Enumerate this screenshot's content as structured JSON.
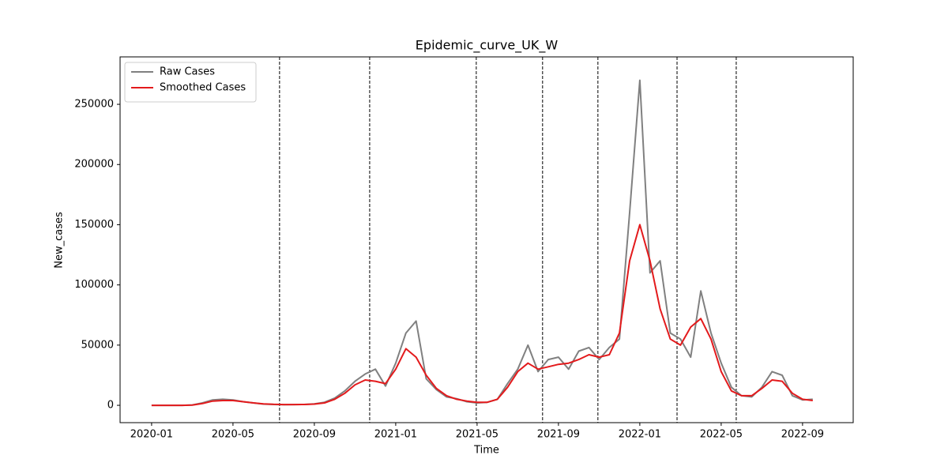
{
  "chart_data": {
    "type": "line",
    "title": "Epidemic_curve_UK_W",
    "xlabel": "Time",
    "ylabel": "New_cases",
    "x": [
      0,
      0.5,
      1,
      1.5,
      2,
      2.5,
      3,
      3.5,
      4,
      4.5,
      5,
      5.5,
      6,
      6.5,
      7,
      7.5,
      8,
      8.5,
      9,
      9.5,
      10,
      10.5,
      11,
      11.5,
      12,
      12.5,
      13,
      13.5,
      14,
      14.5,
      15,
      15.5,
      16,
      16.5,
      17,
      17.5,
      18,
      18.5,
      19,
      19.5,
      20,
      20.5,
      21,
      21.5,
      22,
      22.5,
      23,
      23.5,
      24,
      24.5,
      25,
      25.5,
      26,
      26.5,
      27,
      27.5,
      28,
      28.5,
      29,
      29.5,
      30,
      30.5,
      31,
      31.5,
      32,
      32.5
    ],
    "series": [
      {
        "name": "Raw Cases",
        "color": "#808080",
        "values": [
          0,
          0,
          0,
          0,
          300,
          2000,
          4500,
          5000,
          4500,
          3000,
          2000,
          1000,
          700,
          500,
          600,
          700,
          1200,
          2500,
          6000,
          12000,
          20000,
          26000,
          30000,
          16000,
          35000,
          60000,
          70000,
          22000,
          13000,
          7000,
          5500,
          3000,
          2000,
          2500,
          5000,
          18000,
          30000,
          50000,
          28000,
          38000,
          40000,
          30000,
          45000,
          48000,
          38000,
          48000,
          55000,
          160000,
          270000,
          110000,
          120000,
          60000,
          55000,
          40000,
          95000,
          60000,
          35000,
          15000,
          8000,
          7000,
          15000,
          28000,
          25000,
          8000,
          4500,
          5000
        ]
      },
      {
        "name": "Smoothed Cases",
        "color": "#e31a1c",
        "values": [
          0,
          0,
          0,
          0,
          200,
          1500,
          3500,
          4000,
          4000,
          3000,
          2000,
          1200,
          800,
          600,
          600,
          700,
          1000,
          2000,
          5000,
          10000,
          17000,
          21000,
          20000,
          18000,
          30000,
          47000,
          40000,
          25000,
          14000,
          8000,
          5000,
          3500,
          2500,
          2500,
          5000,
          15000,
          28000,
          35000,
          30000,
          32000,
          34000,
          35000,
          38000,
          42000,
          40000,
          42000,
          60000,
          120000,
          150000,
          120000,
          80000,
          55000,
          50000,
          65000,
          72000,
          55000,
          28000,
          12000,
          8000,
          8000,
          14000,
          21000,
          20000,
          10000,
          5000,
          4000
        ]
      }
    ],
    "vlines": [
      6.29,
      10.72,
      15.96,
      19.22,
      21.94,
      25.83,
      28.74
    ],
    "xlim": [
      -1.55,
      34.49
    ],
    "ylim": [
      -14400,
      289400
    ],
    "xticks": [
      {
        "value": 0,
        "label": "2020-01"
      },
      {
        "value": 4,
        "label": "2020-05"
      },
      {
        "value": 8,
        "label": "2020-09"
      },
      {
        "value": 12,
        "label": "2021-01"
      },
      {
        "value": 16,
        "label": "2021-05"
      },
      {
        "value": 20,
        "label": "2021-09"
      },
      {
        "value": 24,
        "label": "2022-01"
      },
      {
        "value": 28,
        "label": "2022-05"
      },
      {
        "value": 32,
        "label": "2022-09"
      }
    ],
    "yticks": [
      0,
      50000,
      100000,
      150000,
      200000,
      250000
    ],
    "legend": "upper left"
  }
}
